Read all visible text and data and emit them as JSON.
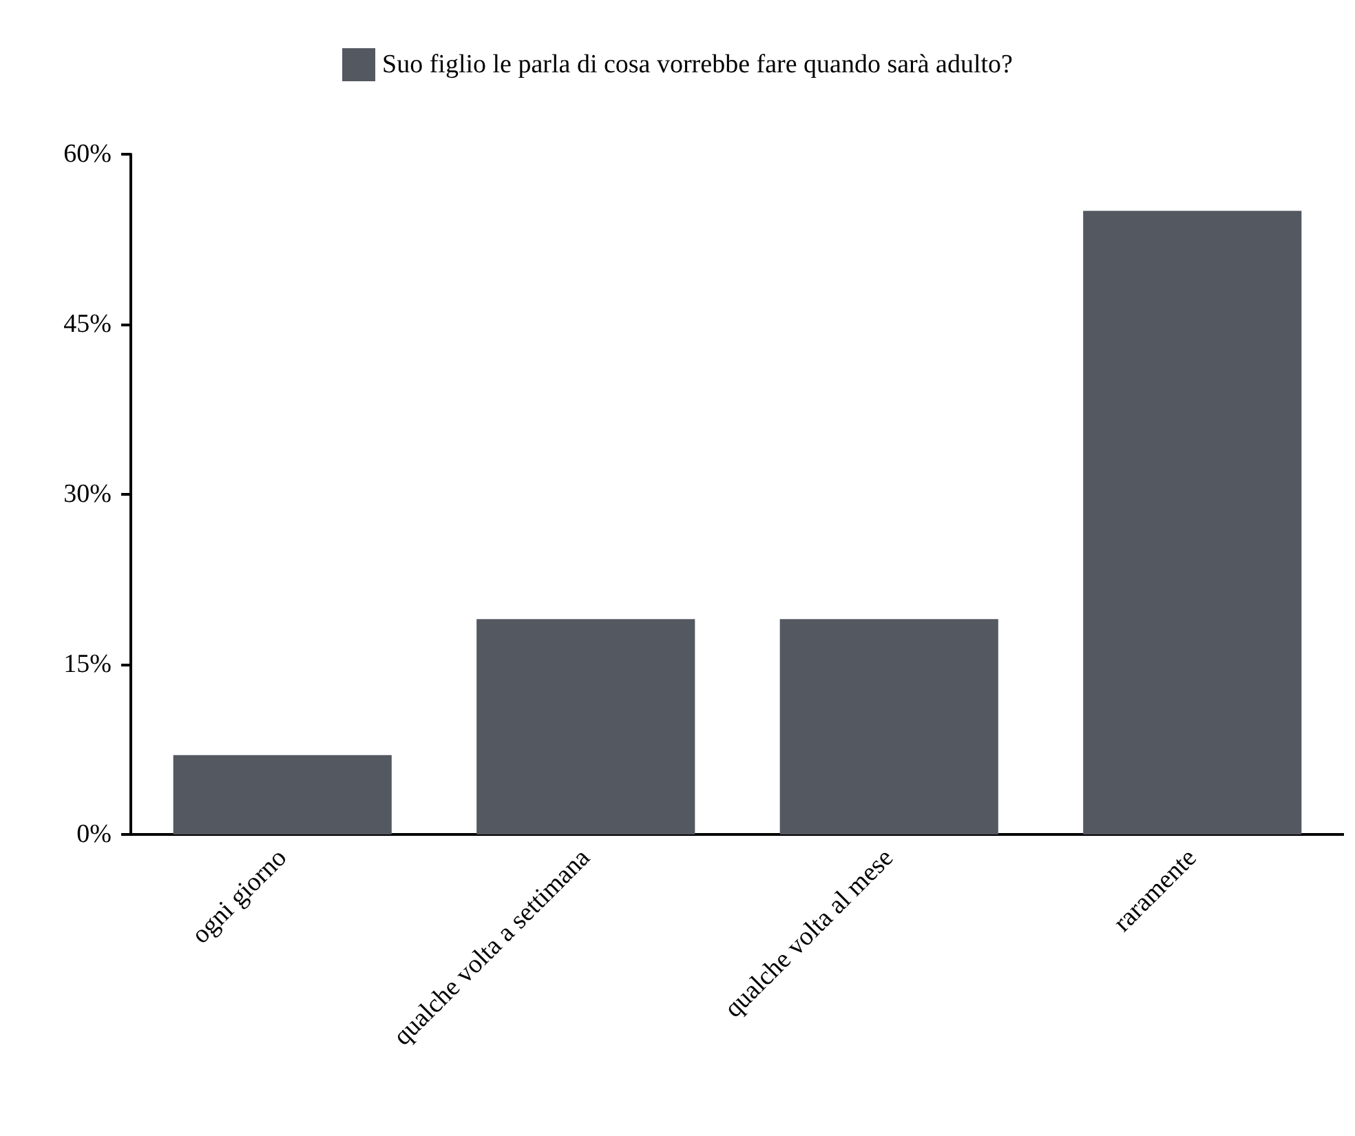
{
  "chart_data": {
    "type": "bar",
    "categories": [
      "ogni giorno",
      "qualche volta a settimana",
      "qualche volta al mese",
      "raramente"
    ],
    "series": [
      {
        "name": "Suo figlio le parla di cosa vorrebbe fare quando sarà adulto?",
        "color": "#545860",
        "values": [
          7,
          19,
          19,
          55
        ]
      }
    ],
    "ylim": [
      0,
      60
    ],
    "yticks": [
      {
        "value": 0,
        "label": "0%"
      },
      {
        "value": 15,
        "label": "15%"
      },
      {
        "value": 30,
        "label": "30%"
      },
      {
        "value": 45,
        "label": "45%"
      },
      {
        "value": 60,
        "label": "60%"
      }
    ],
    "grid": false,
    "legend": "top"
  }
}
